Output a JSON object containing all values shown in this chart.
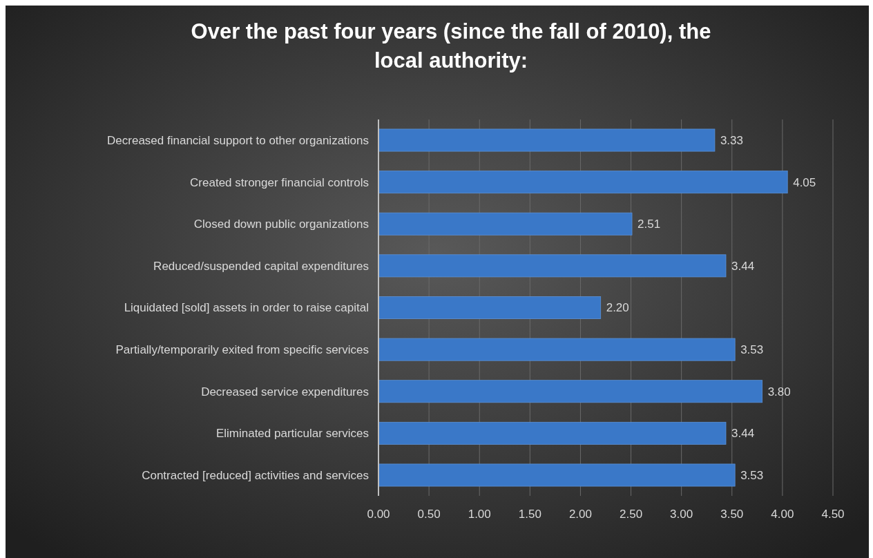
{
  "chart_data": {
    "type": "bar",
    "orientation": "horizontal",
    "title": "Over the past four years (since the fall of 2010), the local authority:",
    "categories": [
      "Decreased financial support to other organizations",
      "Created stronger financial controls",
      "Closed down public organizations",
      "Reduced/suspended capital expenditures",
      "Liquidated [sold] assets in order to raise capital",
      "Partially/temporarily exited from specific services",
      "Decreased service expenditures",
      "Eliminated particular services",
      "Contracted [reduced] activities and services"
    ],
    "values": [
      3.33,
      4.05,
      2.51,
      3.44,
      2.2,
      3.53,
      3.8,
      3.44,
      3.53
    ],
    "value_labels": [
      "3.33",
      "4.05",
      "2.51",
      "3.44",
      "2.20",
      "3.53",
      "3.80",
      "3.44",
      "3.53"
    ],
    "color": "#3a78c8",
    "xlim": [
      0,
      4.5
    ],
    "xticks": [
      {
        "value": 0,
        "label": "0.00"
      },
      {
        "value": 0.5,
        "label": "0.50"
      },
      {
        "value": 1,
        "label": "1.00"
      },
      {
        "value": 1.5,
        "label": "1.50"
      },
      {
        "value": 2,
        "label": "2.00"
      },
      {
        "value": 2.5,
        "label": "2.50"
      },
      {
        "value": 3,
        "label": "3.00"
      },
      {
        "value": 3.5,
        "label": "3.50"
      },
      {
        "value": 4,
        "label": "4.00"
      },
      {
        "value": 4.5,
        "label": "4.50"
      }
    ],
    "grid": "x"
  }
}
